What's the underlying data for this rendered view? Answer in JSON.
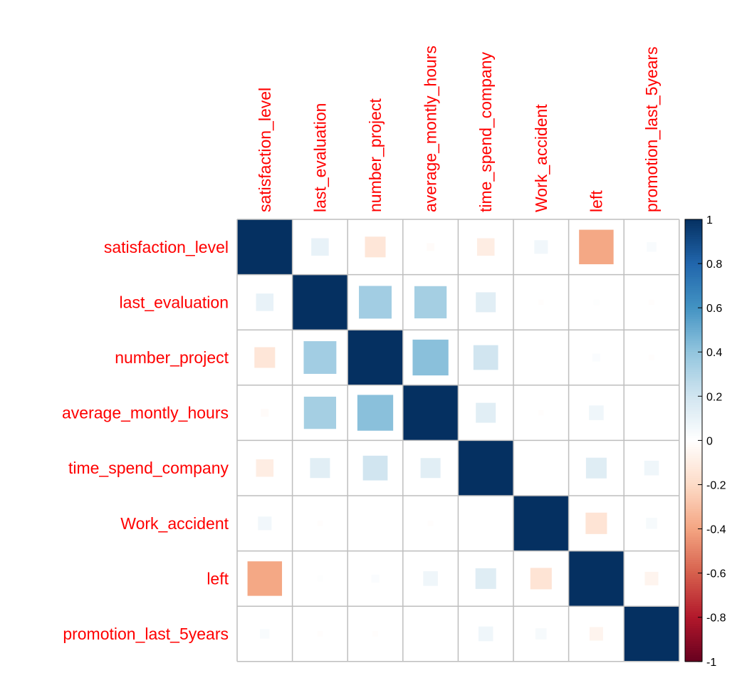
{
  "chart_data": {
    "type": "heatmap",
    "method": "square",
    "title": "",
    "label_color": "#ff0000",
    "variables": [
      "satisfaction_level",
      "last_evaluation",
      "number_project",
      "average_montly_hours",
      "time_spend_company",
      "Work_accident",
      "left",
      "promotion_last_5years"
    ],
    "matrix": [
      [
        1.0,
        0.1,
        -0.14,
        -0.02,
        -0.1,
        0.06,
        -0.39,
        0.03
      ],
      [
        0.1,
        1.0,
        0.35,
        0.34,
        0.13,
        -0.01,
        0.01,
        -0.01
      ],
      [
        -0.14,
        0.35,
        1.0,
        0.42,
        0.2,
        0.0,
        0.02,
        -0.01
      ],
      [
        -0.02,
        0.34,
        0.42,
        1.0,
        0.13,
        -0.01,
        0.07,
        0.0
      ],
      [
        -0.1,
        0.13,
        0.2,
        0.13,
        1.0,
        0.0,
        0.14,
        0.07
      ],
      [
        0.06,
        -0.01,
        0.0,
        -0.01,
        0.0,
        1.0,
        -0.15,
        0.04
      ],
      [
        -0.39,
        0.01,
        0.02,
        0.07,
        0.14,
        -0.15,
        1.0,
        -0.06
      ],
      [
        0.03,
        -0.01,
        -0.01,
        0.0,
        0.07,
        0.04,
        -0.06,
        1.0
      ]
    ],
    "colorbar": {
      "range": [
        -1,
        1
      ],
      "ticks": [
        "1",
        "0.8",
        "0.6",
        "0.4",
        "0.2",
        "0",
        "-0.2",
        "-0.4",
        "-0.6",
        "-0.8",
        "-1"
      ],
      "colors": [
        "#67001F",
        "#B2182B",
        "#D6604D",
        "#F4A582",
        "#FDDBC7",
        "#FFFFFF",
        "#D1E5F0",
        "#92C5DE",
        "#4393C3",
        "#2166AC",
        "#053061"
      ]
    }
  }
}
